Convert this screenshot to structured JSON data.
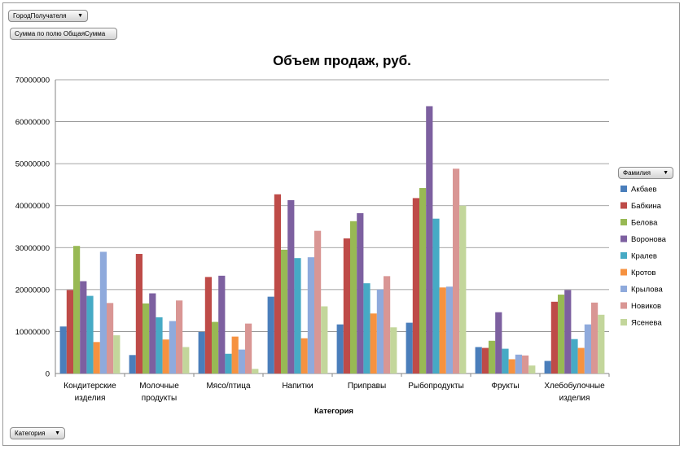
{
  "filters": {
    "city_field": "ГородПолучателя",
    "value_field": "Сумма по полю ОбщаяСумма",
    "category_field": "Категория",
    "legend_field": "Фамилия",
    "dropdown_icon": "chevron-down-icon"
  },
  "chart_data": {
    "type": "bar",
    "title": "Объем продаж, руб.",
    "xlabel": "Категория",
    "ylabel": "",
    "ylim": [
      0,
      70000000
    ],
    "yticks": [
      0,
      10000000,
      20000000,
      30000000,
      40000000,
      50000000,
      60000000,
      70000000
    ],
    "grid": true,
    "legend_position": "right",
    "categories": [
      [
        "Кондитерские",
        "изделия"
      ],
      [
        "Молочные",
        "продукты"
      ],
      [
        "Мясо/птица"
      ],
      [
        "Напитки"
      ],
      [
        "Приправы"
      ],
      [
        "Рыбопродукты"
      ],
      [
        "Фрукты"
      ],
      [
        "Хлебобулочные",
        "изделия"
      ]
    ],
    "series": [
      {
        "name": "Акбаев",
        "color": "#4a7ebb",
        "values": [
          11200000,
          4400000,
          9900000,
          18300000,
          11700000,
          12100000,
          6300000,
          3000000
        ]
      },
      {
        "name": "Бабкина",
        "color": "#be4b48",
        "values": [
          19900000,
          28500000,
          23000000,
          42700000,
          32200000,
          41800000,
          6100000,
          17100000
        ]
      },
      {
        "name": "Белова",
        "color": "#98b954",
        "values": [
          30400000,
          16700000,
          12300000,
          29500000,
          36300000,
          44200000,
          7800000,
          18800000
        ]
      },
      {
        "name": "Воронова",
        "color": "#7d60a0",
        "values": [
          22000000,
          19100000,
          23300000,
          41300000,
          38200000,
          63700000,
          14600000,
          19900000
        ]
      },
      {
        "name": "Кралев",
        "color": "#46aac5",
        "values": [
          18500000,
          13400000,
          4700000,
          27500000,
          21500000,
          36900000,
          5900000,
          8200000
        ]
      },
      {
        "name": "Кротов",
        "color": "#f69240",
        "values": [
          7500000,
          8100000,
          8800000,
          8400000,
          14300000,
          20500000,
          3400000,
          6100000
        ]
      },
      {
        "name": "Крылова",
        "color": "#8faadc",
        "values": [
          29000000,
          12500000,
          5700000,
          27700000,
          20000000,
          20700000,
          4500000,
          11700000
        ]
      },
      {
        "name": "Новиков",
        "color": "#d99694",
        "values": [
          16800000,
          17400000,
          11900000,
          34000000,
          23200000,
          48800000,
          4300000,
          16900000
        ]
      },
      {
        "name": "Ясенева",
        "color": "#c3d69b",
        "values": [
          9100000,
          6300000,
          1100000,
          16000000,
          11000000,
          40000000,
          1900000,
          14000000
        ]
      }
    ]
  }
}
